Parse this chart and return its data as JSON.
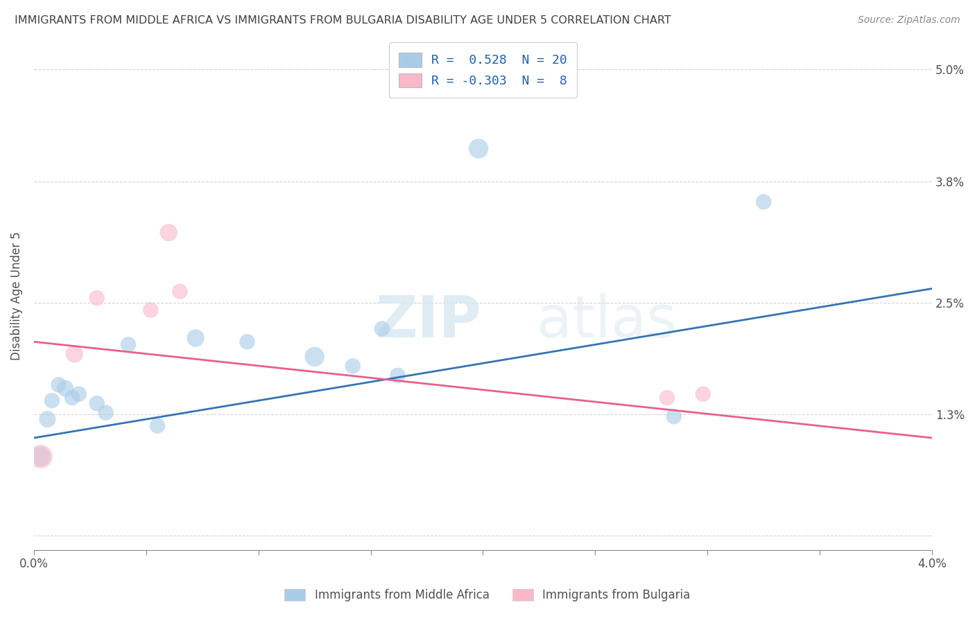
{
  "title": "IMMIGRANTS FROM MIDDLE AFRICA VS IMMIGRANTS FROM BULGARIA DISABILITY AGE UNDER 5 CORRELATION CHART",
  "source": "Source: ZipAtlas.com",
  "xlabel_blue": "Immigrants from Middle Africa",
  "xlabel_pink": "Immigrants from Bulgaria",
  "ylabel": "Disability Age Under 5",
  "blue_R": 0.528,
  "blue_N": 20,
  "pink_R": -0.303,
  "pink_N": 8,
  "blue_color": "#a8cce8",
  "pink_color": "#f9b8ca",
  "blue_line_color": "#3474b5",
  "pink_line_color": "#e8608a",
  "xlim": [
    0.0,
    4.0
  ],
  "ylim": [
    -0.15,
    5.3
  ],
  "yticks": [
    0.0,
    1.3,
    2.5,
    3.8,
    5.0
  ],
  "xticks": [
    0.0,
    0.5,
    1.0,
    1.5,
    2.0,
    2.5,
    3.0,
    3.5,
    4.0
  ],
  "blue_scatter_x": [
    0.03,
    0.06,
    0.08,
    0.11,
    0.14,
    0.17,
    0.2,
    0.28,
    0.32,
    0.42,
    0.55,
    0.72,
    0.95,
    1.25,
    1.42,
    1.55,
    1.62,
    1.98,
    2.85,
    3.25
  ],
  "blue_scatter_y": [
    0.85,
    1.25,
    1.45,
    1.62,
    1.58,
    1.48,
    1.52,
    1.42,
    1.32,
    2.05,
    1.18,
    2.12,
    2.08,
    1.92,
    1.82,
    2.22,
    1.72,
    4.15,
    1.28,
    3.58
  ],
  "blue_scatter_size": [
    35,
    25,
    22,
    22,
    25,
    22,
    22,
    22,
    22,
    22,
    22,
    28,
    22,
    35,
    22,
    22,
    22,
    35,
    22,
    22
  ],
  "pink_scatter_x": [
    0.03,
    0.18,
    0.28,
    0.52,
    0.6,
    0.65,
    2.82,
    2.98
  ],
  "pink_scatter_y": [
    0.85,
    1.95,
    2.55,
    2.42,
    3.25,
    2.62,
    1.48,
    1.52
  ],
  "pink_scatter_size": [
    50,
    28,
    22,
    22,
    28,
    22,
    22,
    22
  ],
  "watermark_zip": "ZIP",
  "watermark_atlas": "atlas",
  "background_color": "#ffffff",
  "grid_color": "#d0d0d0",
  "title_color": "#404040",
  "axis_label_color": "#505050",
  "legend_text_color": "#2060b0",
  "blue_trendline_x": [
    0.0,
    4.0
  ],
  "blue_trendline_y": [
    1.05,
    2.65
  ],
  "pink_trendline_x": [
    0.0,
    4.0
  ],
  "pink_trendline_y": [
    2.08,
    1.05
  ]
}
